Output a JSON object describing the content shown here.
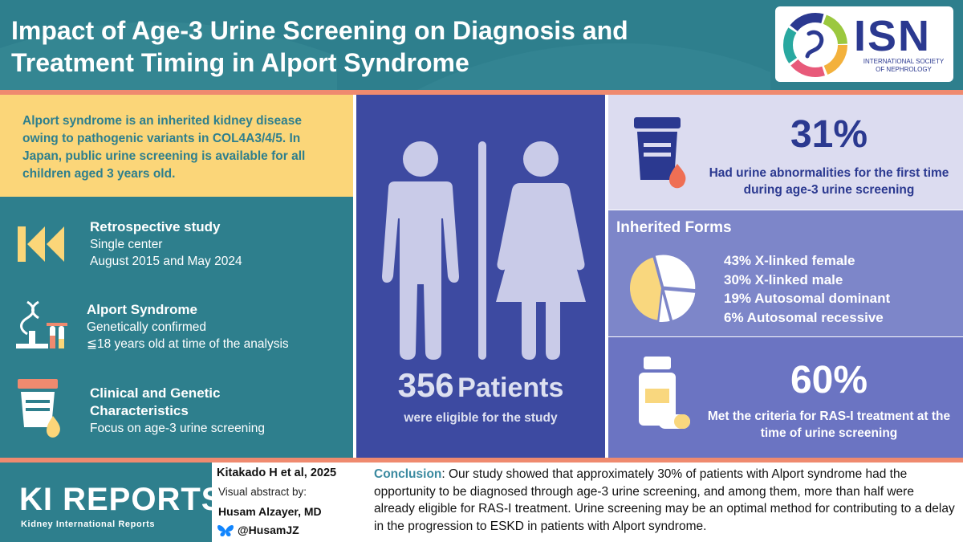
{
  "header": {
    "title": "Impact of Age-3 Urine Screening on Diagnosis and Treatment Timing in Alport Syndrome",
    "org_abbrev": "ISN",
    "org_name_line1": "INTERNATIONAL SOCIETY",
    "org_name_line2": "OF NEPHROLOGY"
  },
  "intro": {
    "text": "Alport syndrome is an inherited kidney disease owing to pathogenic variants in COL4A3/4/5. In Japan, public urine screening is available for all children aged 3 years old."
  },
  "study_items": [
    {
      "icon": "rewind-icon",
      "title": "Retrospective study",
      "lines": [
        "Single center",
        "August 2015 and May 2024"
      ]
    },
    {
      "icon": "microscope-dna-icon",
      "title": "Alport Syndrome",
      "lines": [
        "Genetically confirmed",
        "≦18 years old at time of the analysis"
      ]
    },
    {
      "icon": "urine-cup-icon",
      "title": "Clinical and Genetic Characteristics",
      "lines": [
        "Focus on age-3 urine screening"
      ]
    }
  ],
  "patients": {
    "count": "356",
    "word": "Patients",
    "subtitle": "were eligible for the study"
  },
  "urine_result": {
    "percent": "31%",
    "description": "Had urine abnormalities for the first time during age-3 urine screening"
  },
  "inherited": {
    "title": "Inherited Forms",
    "legend": [
      "43% X-linked female",
      "30% X-linked male",
      "19% Autosomal dominant",
      "6% Autosomal recessive"
    ]
  },
  "chart_data": {
    "type": "pie",
    "title": "Inherited Forms",
    "categories": [
      "X-linked female",
      "X-linked male",
      "Autosomal dominant",
      "Autosomal recessive"
    ],
    "values": [
      43,
      30,
      19,
      6
    ],
    "colors": [
      "#f9d77e",
      "#ffffff",
      "#ffffff",
      "#ffffff"
    ]
  },
  "ras_result": {
    "percent": "60%",
    "description": "Met the criteria for RAS-I treatment at the time of urine screening"
  },
  "footer": {
    "journal": "KI REPORTS",
    "journal_full": "Kidney International Reports",
    "citation": "Kitakado H et al, 2025",
    "visual_abstract_by": "Visual abstract by:",
    "author": "Husam Alzayer, MD",
    "handle": "@HusamJZ",
    "conclusion_label": "Conclusion",
    "conclusion_text": ": Our study showed that approximately 30% of patients with Alport syndrome had the opportunity to be diagnosed through age-3 urine screening, and among them, more than half were already eligible for RAS-I treatment. Urine screening may be an optimal method for contributing to a delay in the progression to ESKD in patients with Alport syndrome."
  },
  "colors": {
    "teal": "#2e7f8d",
    "yellow": "#fbd679",
    "navy": "#2b3990",
    "coral": "#ef8a6f",
    "lavender": "#dcdcf0",
    "periwinkle": "#7d86c9"
  }
}
